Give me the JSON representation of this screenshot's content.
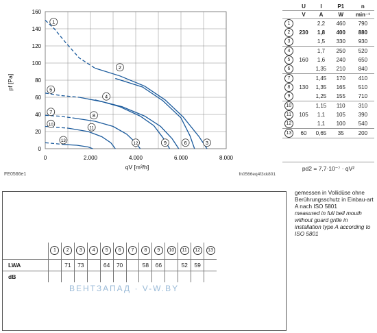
{
  "chart_data": {
    "type": "line",
    "xlabel": "qV [m³/h]",
    "ylabel": "pf [Pa]",
    "xlim": [
      0,
      8000
    ],
    "ylim": [
      0,
      160
    ],
    "xticks": [
      "0",
      "2.000",
      "4.000",
      "6.000",
      "8.000"
    ],
    "yticks": [
      "0",
      "20",
      "40",
      "60",
      "80",
      "100",
      "120",
      "140",
      "160"
    ],
    "grid": true,
    "series": [
      {
        "name": "1",
        "dashed": [
          [
            0,
            150
          ],
          [
            400,
            140
          ],
          [
            900,
            124
          ],
          [
            1500,
            106
          ],
          [
            2200,
            94
          ]
        ],
        "solid": [
          [
            2200,
            94
          ],
          [
            3300,
            85
          ],
          [
            4400,
            73
          ],
          [
            5300,
            57
          ],
          [
            6100,
            37
          ],
          [
            6800,
            14
          ],
          [
            7150,
            0
          ]
        ]
      },
      {
        "name": "2",
        "dashed": [],
        "solid": [
          [
            3100,
            82
          ],
          [
            4300,
            72
          ],
          [
            5200,
            56
          ],
          [
            6000,
            36
          ],
          [
            6400,
            15
          ],
          [
            6600,
            0
          ]
        ]
      },
      {
        "name": "3",
        "dashed": [],
        "solid": []
      },
      {
        "name": "4",
        "dashed": [],
        "solid": [
          [
            2200,
            57
          ],
          [
            3400,
            49
          ],
          [
            4400,
            38
          ],
          [
            5100,
            26
          ],
          [
            5600,
            12
          ],
          [
            5900,
            0
          ]
        ]
      },
      {
        "name": "5",
        "dashed": [
          [
            0,
            65
          ],
          [
            700,
            62
          ],
          [
            1500,
            60
          ]
        ],
        "solid": [
          [
            1500,
            60
          ],
          [
            2500,
            55
          ],
          [
            3300,
            49
          ],
          [
            4200,
            38
          ],
          [
            4800,
            27
          ],
          [
            5200,
            13
          ],
          [
            5500,
            0
          ]
        ]
      },
      {
        "name": "6",
        "dashed": [],
        "solid": []
      },
      {
        "name": "7",
        "dashed": [
          [
            0,
            39
          ],
          [
            600,
            38
          ],
          [
            1200,
            36
          ]
        ],
        "solid": [
          [
            1200,
            36
          ],
          [
            2200,
            32
          ],
          [
            3000,
            26
          ],
          [
            3600,
            17
          ],
          [
            4000,
            7
          ],
          [
            4200,
            0
          ]
        ]
      },
      {
        "name": "8",
        "dashed": [],
        "solid": []
      },
      {
        "name": "9",
        "dashed": [],
        "solid": []
      },
      {
        "name": "10",
        "dashed": [
          [
            0,
            26
          ],
          [
            500,
            25
          ],
          [
            1000,
            24
          ]
        ],
        "solid": [
          [
            1000,
            24
          ],
          [
            1900,
            20
          ],
          [
            2500,
            14
          ],
          [
            2900,
            7
          ],
          [
            3100,
            0
          ]
        ]
      },
      {
        "name": "11",
        "dashed": [],
        "solid": []
      },
      {
        "name": "12",
        "dashed": [],
        "solid": []
      },
      {
        "name": "13",
        "dashed": [
          [
            0,
            7
          ],
          [
            400,
            6
          ],
          [
            800,
            5
          ]
        ],
        "solid": [
          [
            800,
            5
          ],
          [
            1400,
            4
          ],
          [
            1900,
            2
          ],
          [
            2100,
            0
          ]
        ]
      }
    ],
    "curve_labels": [
      {
        "label": "1",
        "x": 370,
        "y": 148
      },
      {
        "label": "2",
        "x": 3300,
        "y": 95
      },
      {
        "label": "3",
        "x": 7150,
        "y": 7
      },
      {
        "label": "4",
        "x": 2700,
        "y": 61
      },
      {
        "label": "5",
        "x": 250,
        "y": 69
      },
      {
        "label": "6",
        "x": 6200,
        "y": 7
      },
      {
        "label": "7",
        "x": 250,
        "y": 43
      },
      {
        "label": "8",
        "x": 2150,
        "y": 39
      },
      {
        "label": "9",
        "x": 5300,
        "y": 7
      },
      {
        "label": "10",
        "x": 250,
        "y": 29
      },
      {
        "label": "11",
        "x": 2050,
        "y": 25
      },
      {
        "label": "12",
        "x": 4000,
        "y": 7
      },
      {
        "label": "13",
        "x": 800,
        "y": 10
      }
    ]
  },
  "chart_footer": {
    "left": "FE0566e1",
    "right": "fn0566eq4f3xk801"
  },
  "spec_table": {
    "headers": [
      "U",
      "I",
      "P1",
      "n"
    ],
    "units": [
      "V",
      "A",
      "W",
      "min⁻¹"
    ],
    "rows": [
      {
        "id": "1",
        "U": "",
        "I": "2,2",
        "P": "460",
        "n": "790"
      },
      {
        "id": "2",
        "U": "230",
        "I": "1,8",
        "P": "400",
        "n": "880"
      },
      {
        "id": "3",
        "U": "",
        "I": "1,5",
        "P": "330",
        "n": "930"
      },
      {
        "id": "4",
        "U": "",
        "I": "1,7",
        "P": "250",
        "n": "520"
      },
      {
        "id": "5",
        "U": "160",
        "I": "1,6",
        "P": "240",
        "n": "650"
      },
      {
        "id": "6",
        "U": "",
        "I": "1,35",
        "P": "210",
        "n": "840"
      },
      {
        "id": "7",
        "U": "",
        "I": "1,45",
        "P": "170",
        "n": "410"
      },
      {
        "id": "8",
        "U": "130",
        "I": "1,35",
        "P": "165",
        "n": "510"
      },
      {
        "id": "9",
        "U": "",
        "I": "1,25",
        "P": "155",
        "n": "710"
      },
      {
        "id": "10",
        "U": "",
        "I": "1,15",
        "P": "110",
        "n": "310"
      },
      {
        "id": "11",
        "U": "105",
        "I": "1,1",
        "P": "105",
        "n": "390"
      },
      {
        "id": "12",
        "U": "",
        "I": "1,1",
        "P": "100",
        "n": "540"
      },
      {
        "id": "13",
        "U": "60",
        "I": "0,65",
        "P": "35",
        "n": "200"
      }
    ]
  },
  "formula": "pd2 = 7,7·10⁻⁷ · qV²",
  "note": {
    "de": "gemessen in Vollidüse ohne Berührungsschutz in Einbau-art A nach ISO 5801",
    "en": "measured in full bell mouth without guard grille in installation type A according to ISO 5801"
  },
  "sound": {
    "columns": [
      "1",
      "2",
      "3",
      "4",
      "5",
      "6",
      "7",
      "8",
      "9",
      "10",
      "11",
      "12",
      "13"
    ],
    "row_label": "LWA",
    "row_unit": "dB",
    "values": [
      "",
      "71",
      "73",
      "",
      "64",
      "70",
      "",
      "58",
      "66",
      "",
      "52",
      "59",
      ""
    ]
  },
  "watermark": "ВЕНТЗАПАД · V-W.BY"
}
